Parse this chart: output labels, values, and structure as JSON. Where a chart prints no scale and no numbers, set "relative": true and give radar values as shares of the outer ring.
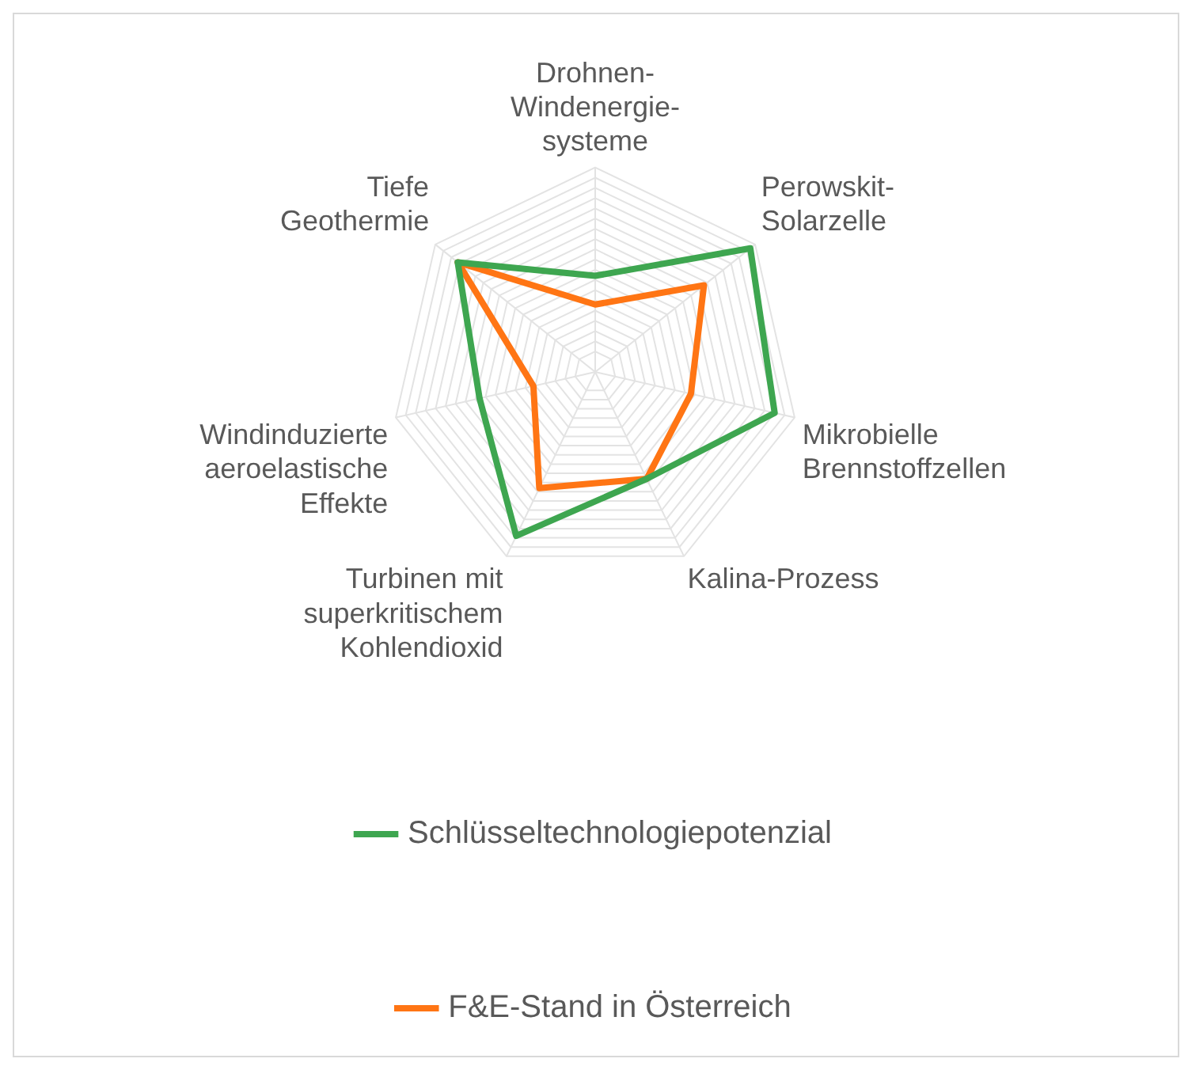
{
  "chart_data": {
    "type": "radar",
    "relative": true,
    "grid": true,
    "legend": "bottom",
    "marker": "none",
    "categories": [
      "Drohnen-\nWindenergie-\nsysteme",
      "Perowskit-\nSolarzelle",
      "Mikrobielle\nBrennstoffzellen",
      "Kalina-Prozess",
      "Turbinen mit\nsuperkritischem\nKohlendioxid",
      "Windinduzierte\naeroelastische\nEffekte",
      "Tiefe\nGeothermie"
    ],
    "series": [
      {
        "name": "Schlüsseltechnologiepotenzial",
        "color": "#3ea650",
        "values": [
          0.47,
          0.97,
          0.9,
          0.58,
          0.89,
          0.58,
          0.86
        ]
      },
      {
        "name": "F&E-Stand in Österreich",
        "color": "#ff7514",
        "values": [
          0.33,
          0.68,
          0.48,
          0.58,
          0.63,
          0.31,
          0.86
        ]
      }
    ]
  }
}
